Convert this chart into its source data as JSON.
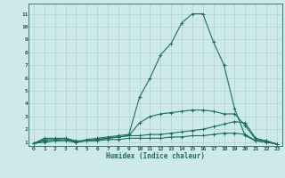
{
  "xlabel": "Humidex (Indice chaleur)",
  "xlim": [
    -0.5,
    23.5
  ],
  "ylim": [
    0.7,
    11.8
  ],
  "x_ticks": [
    0,
    1,
    2,
    3,
    4,
    5,
    6,
    7,
    8,
    9,
    10,
    11,
    12,
    13,
    14,
    15,
    16,
    17,
    18,
    19,
    20,
    21,
    22,
    23
  ],
  "y_ticks": [
    1,
    2,
    3,
    4,
    5,
    6,
    7,
    8,
    9,
    10,
    11
  ],
  "bg_color": "#ceeae8",
  "grid_color": "#aed4d0",
  "line_color": "#1a6e5e",
  "series": [
    [
      0.9,
      1.3,
      1.3,
      1.3,
      1.0,
      1.2,
      1.3,
      1.4,
      1.5,
      1.6,
      4.5,
      6.0,
      7.8,
      8.7,
      10.3,
      11.0,
      11.0,
      8.8,
      7.0,
      3.6,
      1.5,
      1.1,
      1.0,
      0.85
    ],
    [
      0.9,
      1.2,
      1.2,
      1.3,
      1.1,
      1.1,
      1.2,
      1.3,
      1.4,
      1.5,
      2.5,
      3.0,
      3.2,
      3.3,
      3.4,
      3.5,
      3.5,
      3.4,
      3.2,
      3.2,
      2.3,
      1.2,
      1.1,
      0.85
    ],
    [
      0.9,
      1.1,
      1.1,
      1.2,
      1.0,
      1.1,
      1.2,
      1.3,
      1.4,
      1.5,
      1.5,
      1.6,
      1.6,
      1.7,
      1.8,
      1.9,
      2.0,
      2.2,
      2.4,
      2.6,
      2.5,
      1.3,
      1.1,
      0.85
    ],
    [
      0.9,
      1.0,
      1.1,
      1.1,
      1.0,
      1.1,
      1.1,
      1.2,
      1.2,
      1.3,
      1.3,
      1.3,
      1.3,
      1.4,
      1.4,
      1.5,
      1.5,
      1.6,
      1.7,
      1.7,
      1.6,
      1.1,
      1.0,
      0.85
    ]
  ]
}
